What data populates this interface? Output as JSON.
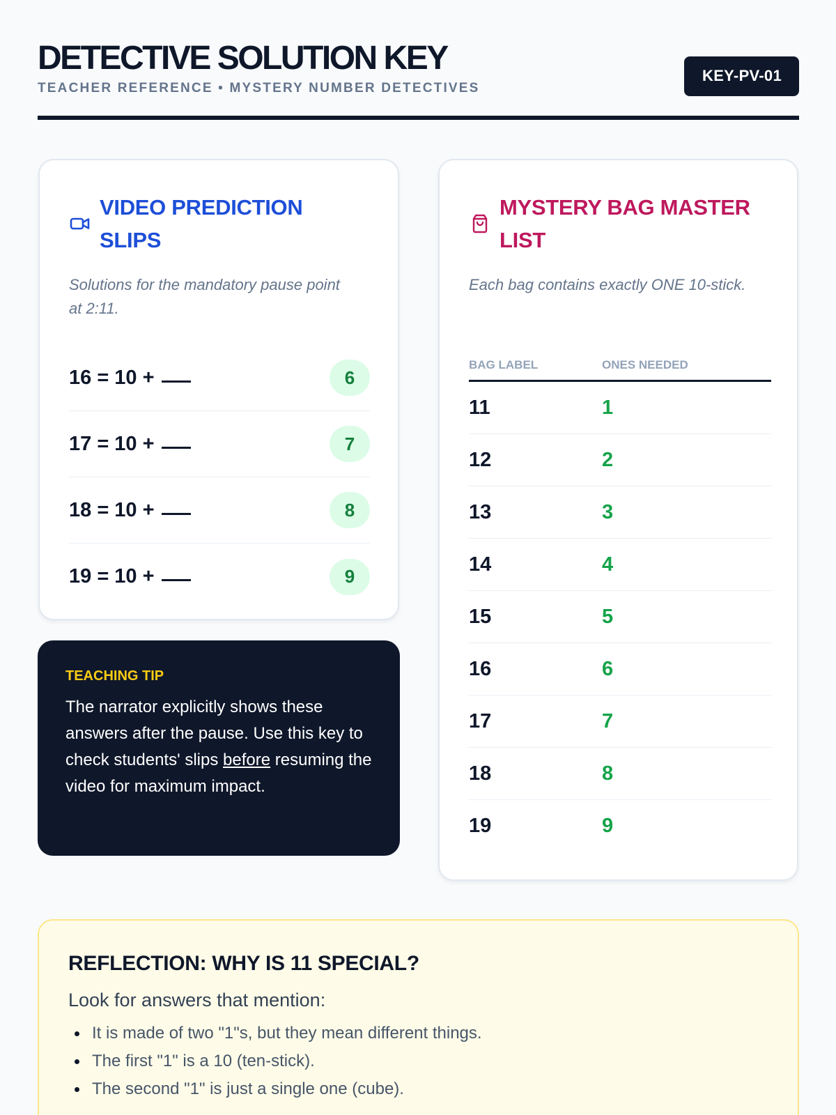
{
  "header": {
    "title": "DETECTIVE SOLUTION KEY",
    "subtitle": "TEACHER REFERENCE • MYSTERY NUMBER DETECTIVES",
    "key_code": "KEY-PV-01"
  },
  "video_card": {
    "icon": "video-camera-icon",
    "title": "VIDEO PREDICTION SLIPS",
    "description": "Solutions for the mandatory pause point at 2:11.",
    "slips": [
      {
        "equation": "16 = 10 +",
        "answer": "6"
      },
      {
        "equation": "17 = 10 +",
        "answer": "7"
      },
      {
        "equation": "18 = 10 +",
        "answer": "8"
      },
      {
        "equation": "19 = 10 +",
        "answer": "9"
      }
    ]
  },
  "tip": {
    "label": "TEACHING TIP",
    "text_before": "The narrator explicitly shows these answers after the pause. Use this key to check students' slips ",
    "text_emphasis": "before",
    "text_after": " resuming the video for maximum impact."
  },
  "bag_card": {
    "icon": "shopping-bag-icon",
    "title": "MYSTERY BAG MASTER LIST",
    "description": "Each bag contains exactly ONE 10-stick.",
    "columns": [
      "BAG LABEL",
      "ONES NEEDED"
    ],
    "rows": [
      {
        "bag": "11",
        "ones": "1"
      },
      {
        "bag": "12",
        "ones": "2"
      },
      {
        "bag": "13",
        "ones": "3"
      },
      {
        "bag": "14",
        "ones": "4"
      },
      {
        "bag": "15",
        "ones": "5"
      },
      {
        "bag": "16",
        "ones": "6"
      },
      {
        "bag": "17",
        "ones": "7"
      },
      {
        "bag": "18",
        "ones": "8"
      },
      {
        "bag": "19",
        "ones": "9"
      }
    ]
  },
  "reflection": {
    "title": "REFLECTION: WHY IS 11 SPECIAL?",
    "lead": "Look for answers that mention:",
    "points": [
      "It is made of two \"1\"s, but they mean different things.",
      "The first \"1\" is a 10 (ten-stick).",
      "The second \"1\" is just a single one (cube)."
    ]
  },
  "colors": {
    "ink": "#0f172a",
    "video_accent": "#1d4ed8",
    "bag_accent": "#be185d",
    "answer_green": "#16a34a",
    "tip_yellow": "#facc15"
  }
}
